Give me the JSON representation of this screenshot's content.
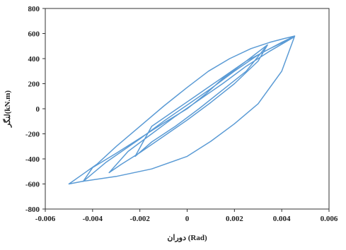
{
  "chart_data": {
    "type": "line",
    "xlabel": "دوران (Rad)",
    "ylabel": "لنگر(kN.m)",
    "xlim": [
      -0.006,
      0.006
    ],
    "ylim": [
      -800,
      800
    ],
    "x_ticks": [
      "-0.006",
      "-0.004",
      "-0.002",
      "0",
      "0.002",
      "0.004",
      "0.006"
    ],
    "y_ticks": [
      "800",
      "600",
      "400",
      "200",
      "0",
      "-200",
      "-400",
      "-600",
      "-800"
    ],
    "grid": false,
    "series": [
      {
        "x": [
          0.00455,
          0.0041,
          0.0035,
          0.0027,
          0.0018,
          0.0009,
          0.0,
          -0.001,
          -0.002,
          -0.003,
          -0.0038,
          -0.0044,
          -0.005,
          -0.0044,
          -0.003,
          -0.0015,
          0.0,
          0.001,
          0.002,
          0.003,
          0.004,
          0.00455,
          0.004,
          0.003,
          0.002,
          0.001,
          0.0,
          -0.001,
          -0.002,
          -0.003,
          -0.00345,
          -0.0044,
          -0.004,
          -0.003,
          -0.002,
          -0.001,
          0.0,
          0.0008,
          0.0015,
          0.0025,
          0.0035,
          0.0045,
          0.0045,
          0.0035,
          0.0025,
          0.0015,
          0.0005,
          -0.0005,
          -0.0015,
          -0.0025,
          -0.0033,
          -0.0028,
          -0.002,
          -0.001,
          0.0,
          0.001,
          0.002,
          0.003,
          0.0034,
          0.0025,
          0.0015,
          0.0005,
          -0.0005,
          -0.0015,
          -0.0022,
          -0.0015,
          -0.0005,
          0.0005,
          0.0015,
          0.0025,
          0.0034
        ],
        "y": [
          580,
          560,
          530,
          480,
          400,
          300,
          170,
          20,
          -140,
          -300,
          -440,
          -520,
          -600,
          -578,
          -540,
          -480,
          -380,
          -260,
          -120,
          40,
          300,
          580,
          530,
          430,
          300,
          160,
          30,
          -100,
          -240,
          -370,
          -430,
          -580,
          -470,
          -355,
          -235,
          -115,
          0,
          120,
          240,
          380,
          480,
          570,
          570,
          460,
          340,
          200,
          70,
          -60,
          -200,
          -340,
          -510,
          -445,
          -350,
          -220,
          -90,
          50,
          200,
          380,
          510,
          380,
          250,
          120,
          -10,
          -140,
          -380,
          -265,
          -140,
          0,
          150,
          300,
          510
        ]
      }
    ]
  }
}
